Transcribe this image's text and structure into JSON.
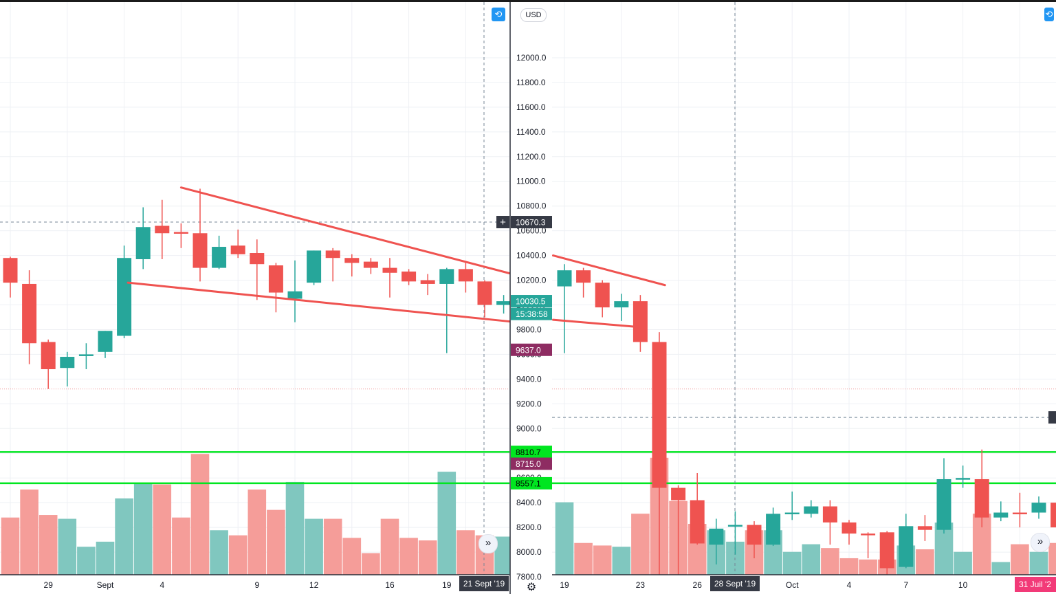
{
  "icons": {
    "sync": "sync-icon",
    "scroll": "double-chevron-right-icon",
    "settings": "gear-icon",
    "crosshair": "crosshair-plus-icon"
  },
  "colors": {
    "up": "#26a69a",
    "down": "#ef5350",
    "volume_up": "#80c7bf",
    "volume_down": "#f59d99",
    "support_line": "#00e620",
    "trend_line": "#ef5350",
    "axis_dark": "#363a45",
    "magenta": "#8e2c62",
    "pink_label": "#f23a78"
  },
  "currency_badge": "USD",
  "chart_data": [
    {
      "type": "candlestick",
      "ylim": [
        7700,
        12150
      ],
      "y_ticks": [
        "12000.0",
        "11800.0",
        "11600.0",
        "11400.0",
        "11200.0",
        "11000.0",
        "10800.0",
        "10600.0",
        "10400.0",
        "10200.0",
        "10000.0",
        "9800.0",
        "9600.0",
        "9400.0",
        "9200.0",
        "9000.0",
        "8800.0",
        "8600.0",
        "8400.0",
        "8200.0",
        "8000.0",
        "7800.0"
      ],
      "x_labels": [
        {
          "label": "29",
          "index": 2
        },
        {
          "label": "Sept",
          "index": 5
        },
        {
          "label": "4",
          "index": 8
        },
        {
          "label": "9",
          "index": 13
        },
        {
          "label": "12",
          "index": 16
        },
        {
          "label": "16",
          "index": 20
        },
        {
          "label": "19",
          "index": 23
        }
      ],
      "crosshair_date": "21 Sept '19",
      "candles": [
        {
          "o": 10380,
          "h": 10390,
          "l": 10060,
          "c": 10180
        },
        {
          "o": 10170,
          "h": 10280,
          "l": 9520,
          "c": 9690
        },
        {
          "o": 9700,
          "h": 9720,
          "l": 9320,
          "c": 9480
        },
        {
          "o": 9490,
          "h": 9620,
          "l": 9340,
          "c": 9580
        },
        {
          "o": 9590,
          "h": 9690,
          "l": 9480,
          "c": 9600
        },
        {
          "o": 9620,
          "h": 9790,
          "l": 9570,
          "c": 9790
        },
        {
          "o": 9750,
          "h": 10480,
          "l": 9730,
          "c": 10380
        },
        {
          "o": 10370,
          "h": 10790,
          "l": 10290,
          "c": 10630
        },
        {
          "o": 10640,
          "h": 10850,
          "l": 10370,
          "c": 10580
        },
        {
          "o": 10590,
          "h": 10660,
          "l": 10460,
          "c": 10580
        },
        {
          "o": 10580,
          "h": 10940,
          "l": 10190,
          "c": 10300
        },
        {
          "o": 10300,
          "h": 10560,
          "l": 10290,
          "c": 10470
        },
        {
          "o": 10480,
          "h": 10610,
          "l": 10380,
          "c": 10410
        },
        {
          "o": 10420,
          "h": 10530,
          "l": 10040,
          "c": 10330
        },
        {
          "o": 10320,
          "h": 10340,
          "l": 9940,
          "c": 10100
        },
        {
          "o": 10050,
          "h": 10360,
          "l": 9860,
          "c": 10110
        },
        {
          "o": 10180,
          "h": 10440,
          "l": 10160,
          "c": 10440
        },
        {
          "o": 10440,
          "h": 10460,
          "l": 10190,
          "c": 10380
        },
        {
          "o": 10380,
          "h": 10410,
          "l": 10230,
          "c": 10340
        },
        {
          "o": 10350,
          "h": 10380,
          "l": 10250,
          "c": 10300
        },
        {
          "o": 10300,
          "h": 10380,
          "l": 10060,
          "c": 10260
        },
        {
          "o": 10270,
          "h": 10290,
          "l": 10160,
          "c": 10190
        },
        {
          "o": 10200,
          "h": 10250,
          "l": 10080,
          "c": 10170
        },
        {
          "o": 10170,
          "h": 10300,
          "l": 9610,
          "c": 10290
        },
        {
          "o": 10290,
          "h": 10340,
          "l": 10100,
          "c": 10190
        },
        {
          "o": 10190,
          "h": 10200,
          "l": 9900,
          "c": 10000
        },
        {
          "o": 10000,
          "h": 10080,
          "l": 9930,
          "c": 10030
        }
      ],
      "volumes": [
        0.45,
        0.67,
        0.47,
        0.44,
        0.22,
        0.26,
        0.6,
        0.72,
        0.71,
        0.45,
        0.95,
        0.35,
        0.31,
        0.67,
        0.51,
        0.73,
        0.44,
        0.44,
        0.29,
        0.17,
        0.44,
        0.29,
        0.27,
        0.81,
        0.35,
        0.31,
        0.3
      ],
      "trend_lines": [
        {
          "x1": 9.0,
          "y1": 10950,
          "x2": 26.7,
          "y2": 10240
        },
        {
          "x1": 6.2,
          "y1": 10180,
          "x2": 26.7,
          "y2": 9860
        }
      ],
      "horizontal_levels": [
        {
          "value": 8810.7,
          "label": "8810.7",
          "style": "support"
        },
        {
          "value": 8557.1,
          "label": "8557.1",
          "style": "support"
        },
        {
          "value": 10670.3,
          "label": "10670.3",
          "style": "crosshair"
        },
        {
          "value": 9320,
          "label": "",
          "style": "faint"
        }
      ],
      "price_labels": [
        {
          "value": 10670.3,
          "text": "10670.3",
          "kind": "crosshair"
        },
        {
          "value": 10030.5,
          "text": "10030.5",
          "kind": "last"
        },
        {
          "value": 9927,
          "text": "15:38:58",
          "kind": "countdown"
        },
        {
          "value": 9637.0,
          "text": "9637.0",
          "kind": "marker"
        },
        {
          "value": 8810.7,
          "text": "8810.7",
          "kind": "support"
        },
        {
          "value": 8715.0,
          "text": "8715.0",
          "kind": "marker"
        },
        {
          "value": 8557.1,
          "text": "8557.1",
          "kind": "support"
        }
      ]
    },
    {
      "type": "candlestick",
      "ylim": [
        7700,
        12150
      ],
      "x_labels": [
        {
          "label": "19",
          "index": 0
        },
        {
          "label": "23",
          "index": 4
        },
        {
          "label": "26",
          "index": 7
        },
        {
          "label": "Oct",
          "index": 12
        },
        {
          "label": "4",
          "index": 15
        },
        {
          "label": "7",
          "index": 18
        },
        {
          "label": "10",
          "index": 21
        }
      ],
      "crosshair_date": "28 Sept '19",
      "corner_date": "31 Juil '2",
      "candles": [
        {
          "o": 10150,
          "h": 10330,
          "l": 9610,
          "c": 10280
        },
        {
          "o": 10280,
          "h": 10300,
          "l": 10060,
          "c": 10180
        },
        {
          "o": 10180,
          "h": 10200,
          "l": 9900,
          "c": 9980
        },
        {
          "o": 9980,
          "h": 10090,
          "l": 9870,
          "c": 10030
        },
        {
          "o": 10030,
          "h": 10080,
          "l": 9620,
          "c": 9700
        },
        {
          "o": 9700,
          "h": 9780,
          "l": 7800,
          "c": 8520
        },
        {
          "o": 8520,
          "h": 8540,
          "l": 7800,
          "c": 8420
        },
        {
          "o": 8420,
          "h": 8640,
          "l": 8060,
          "c": 8070
        },
        {
          "o": 8060,
          "h": 8270,
          "l": 7900,
          "c": 8190
        },
        {
          "o": 8210,
          "h": 8330,
          "l": 7980,
          "c": 8220
        },
        {
          "o": 8220,
          "h": 8250,
          "l": 7950,
          "c": 8060
        },
        {
          "o": 8060,
          "h": 8360,
          "l": 8050,
          "c": 8310
        },
        {
          "o": 8310,
          "h": 8490,
          "l": 8260,
          "c": 8320
        },
        {
          "o": 8310,
          "h": 8420,
          "l": 8280,
          "c": 8370
        },
        {
          "o": 8370,
          "h": 8420,
          "l": 8060,
          "c": 8240
        },
        {
          "o": 8240,
          "h": 8260,
          "l": 8060,
          "c": 8150
        },
        {
          "o": 8150,
          "h": 8160,
          "l": 7950,
          "c": 8140
        },
        {
          "o": 8160,
          "h": 8170,
          "l": 7760,
          "c": 7870
        },
        {
          "o": 7880,
          "h": 8310,
          "l": 7870,
          "c": 8210
        },
        {
          "o": 8210,
          "h": 8300,
          "l": 8090,
          "c": 8180
        },
        {
          "o": 8180,
          "h": 8760,
          "l": 8150,
          "c": 8590
        },
        {
          "o": 8590,
          "h": 8700,
          "l": 8520,
          "c": 8600
        },
        {
          "o": 8590,
          "h": 8830,
          "l": 8200,
          "c": 8280
        },
        {
          "o": 8280,
          "h": 8410,
          "l": 8250,
          "c": 8320
        },
        {
          "o": 8320,
          "h": 8480,
          "l": 8200,
          "c": 8310
        },
        {
          "o": 8320,
          "h": 8450,
          "l": 8270,
          "c": 8400
        },
        {
          "o": 8400,
          "h": 8430,
          "l": 8120,
          "c": 8200
        }
      ],
      "volumes": [
        0.57,
        0.25,
        0.23,
        0.22,
        0.48,
        0.92,
        0.58,
        0.4,
        0.35,
        0.26,
        0.35,
        0.35,
        0.18,
        0.24,
        0.21,
        0.13,
        0.12,
        0.12,
        0.23,
        0.2,
        0.41,
        0.18,
        0.48,
        0.1,
        0.24,
        0.18,
        0.25
      ],
      "trend_lines": [
        {
          "x1": -0.6,
          "y1": 10400,
          "x2": 5.3,
          "y2": 10160
        },
        {
          "x1": -0.6,
          "y1": 9880,
          "x2": 4.0,
          "y2": 9820
        }
      ],
      "horizontal_levels": [
        {
          "value": 8810.7,
          "label": "",
          "style": "support"
        },
        {
          "value": 8557.1,
          "label": "",
          "style": "support"
        },
        {
          "value": 9320,
          "label": "",
          "style": "faint"
        },
        {
          "value": 9090,
          "label": "",
          "style": "crosshair"
        }
      ]
    }
  ]
}
